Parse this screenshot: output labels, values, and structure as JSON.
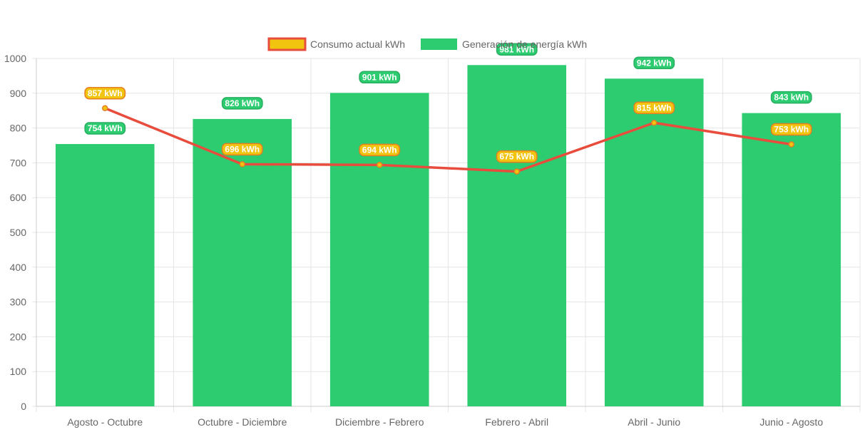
{
  "chart_data": {
    "type": "bar",
    "categories": [
      "Agosto - Octubre",
      "Octubre - Diciembre",
      "Diciembre - Febrero",
      "Febrero - Abril",
      "Abril - Junio",
      "Junio - Agosto"
    ],
    "series": [
      {
        "name": "Consumo actual kWh",
        "type": "line",
        "values": [
          857,
          696,
          694,
          675,
          815,
          753
        ],
        "data_labels": [
          "857 kWh",
          "696 kWh",
          "694 kWh",
          "675 kWh",
          "815 kWh",
          "753 kWh"
        ],
        "color": "#e74c3c",
        "fill": "#f1c40f"
      },
      {
        "name": "Generación de energía kWh",
        "type": "bar",
        "values": [
          754,
          826,
          901,
          981,
          942,
          843
        ],
        "data_labels": [
          "754 kWh",
          "826 kWh",
          "901 kWh",
          "981 kWh",
          "942 kWh",
          "843 kWh"
        ],
        "color": "#2ecc71"
      }
    ],
    "yticks": [
      "0",
      "100",
      "200",
      "300",
      "400",
      "500",
      "600",
      "700",
      "800",
      "900",
      "1000"
    ],
    "ylim": [
      0,
      1000
    ],
    "grid": true,
    "legend": "top-center",
    "title": "",
    "xlabel": "",
    "ylabel": ""
  }
}
